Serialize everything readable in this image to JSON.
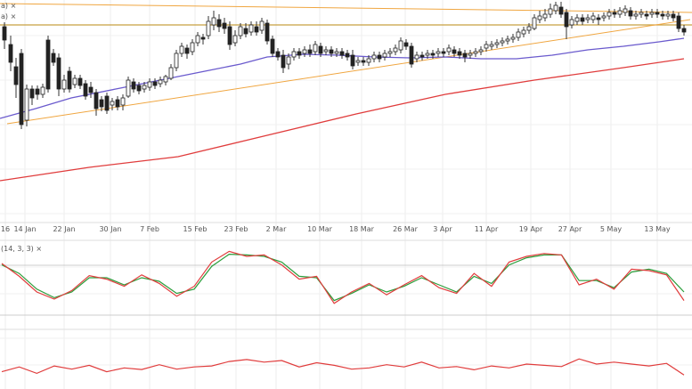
{
  "chart_data": {
    "type": "candlestick",
    "panels": [
      {
        "id": "price",
        "legend": [
          "a) ×",
          "a) ×"
        ],
        "overlays": [
          {
            "kind": "moving-average",
            "color": "#6a5acd"
          },
          {
            "kind": "moving-average",
            "color": "#e03c3c"
          },
          {
            "kind": "trendline",
            "color": "#f0a640"
          },
          {
            "kind": "horizontal-level",
            "color": "#c8a040"
          }
        ]
      },
      {
        "id": "stochastic",
        "legend": "(14, 3, 3) ×",
        "lines": [
          {
            "color": "#e03c3c"
          },
          {
            "color": "#2a9d3a"
          }
        ],
        "k": [
          80,
          62,
          40,
          30,
          42,
          63,
          58,
          48,
          64,
          52,
          34,
          48,
          82,
          97,
          90,
          92,
          78,
          58,
          62,
          24,
          40,
          52,
          36,
          50,
          63,
          46,
          38,
          66,
          48,
          82,
          90,
          94,
          92,
          50,
          58,
          44,
          72,
          70,
          64,
          28
        ],
        "d": [
          78,
          66,
          44,
          32,
          40,
          60,
          60,
          50,
          60,
          55,
          38,
          44,
          76,
          93,
          92,
          90,
          82,
          62,
          60,
          28,
          38,
          50,
          40,
          48,
          60,
          50,
          40,
          62,
          52,
          78,
          88,
          92,
          92,
          56,
          56,
          46,
          68,
          72,
          66,
          40
        ]
      },
      {
        "id": "oscillator",
        "lines": [
          {
            "color": "#e03c3c"
          }
        ],
        "values": [
          40,
          55,
          35,
          58,
          48,
          60,
          40,
          52,
          47,
          62,
          48,
          55,
          58,
          72,
          78,
          70,
          75,
          55,
          68,
          60,
          48,
          52,
          62,
          55,
          70,
          52,
          56,
          46,
          58,
          52,
          64,
          60,
          56,
          80,
          64,
          70,
          64,
          58,
          66,
          30
        ]
      }
    ],
    "x_ticks": [
      "16",
      "14 Jan",
      "22 Jan",
      "30 Jan",
      "7 Feb",
      "15 Feb",
      "23 Feb",
      "2 Mar",
      "10 Mar",
      "18 Mar",
      "26 Mar",
      "3 Apr",
      "11 Apr",
      "19 Apr",
      "27 Apr",
      "5 May",
      "13 May"
    ],
    "grid": true
  }
}
